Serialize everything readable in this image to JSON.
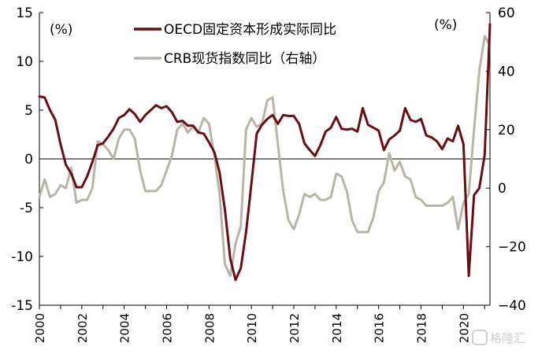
{
  "chart_data": {
    "type": "line",
    "title": "",
    "x_range": [
      2000.0,
      2021.25
    ],
    "x_ticks": [
      "2000",
      "2002",
      "2004",
      "2006",
      "2008",
      "2010",
      "2012",
      "2014",
      "2016",
      "2018",
      "2020"
    ],
    "left_axis": {
      "unit_label": "(%)",
      "ylim": [
        -15,
        15
      ],
      "ticks": [
        "15",
        "10",
        "5",
        "0",
        "-5",
        "-10",
        "-15"
      ]
    },
    "right_axis": {
      "unit_label": "(%)",
      "ylim": [
        -40,
        60
      ],
      "ticks": [
        "60",
        "40",
        "20",
        "0",
        "−20",
        "−40"
      ]
    },
    "series": [
      {
        "name": "OECD固定资本形成实际同比",
        "axis": "left",
        "color": "#6b0e14",
        "x": [
          2000.0,
          2000.25,
          2000.5,
          2000.75,
          2001.0,
          2001.25,
          2001.5,
          2001.75,
          2002.0,
          2002.25,
          2002.5,
          2002.75,
          2003.0,
          2003.25,
          2003.5,
          2003.75,
          2004.0,
          2004.25,
          2004.5,
          2004.75,
          2005.0,
          2005.25,
          2005.5,
          2005.75,
          2006.0,
          2006.25,
          2006.5,
          2006.75,
          2007.0,
          2007.25,
          2007.5,
          2007.75,
          2008.0,
          2008.25,
          2008.5,
          2008.75,
          2009.0,
          2009.25,
          2009.5,
          2009.75,
          2010.0,
          2010.25,
          2010.5,
          2010.75,
          2011.0,
          2011.25,
          2011.5,
          2011.75,
          2012.0,
          2012.25,
          2012.5,
          2012.75,
          2013.0,
          2013.25,
          2013.5,
          2013.75,
          2014.0,
          2014.25,
          2014.5,
          2014.75,
          2015.0,
          2015.25,
          2015.5,
          2015.75,
          2016.0,
          2016.25,
          2016.5,
          2016.75,
          2017.0,
          2017.25,
          2017.5,
          2017.75,
          2018.0,
          2018.25,
          2018.5,
          2018.75,
          2019.0,
          2019.25,
          2019.5,
          2019.75,
          2020.0,
          2020.25,
          2020.5,
          2020.75,
          2021.0,
          2021.25
        ],
        "values": [
          6.4,
          6.3,
          5.0,
          4.0,
          1.5,
          -0.6,
          -1.5,
          -2.9,
          -2.9,
          -1.8,
          -0.3,
          1.4,
          1.6,
          2.3,
          3.1,
          4.2,
          4.5,
          5.1,
          4.6,
          3.8,
          4.5,
          5.0,
          5.5,
          5.2,
          5.4,
          4.8,
          3.8,
          3.9,
          3.4,
          3.4,
          2.7,
          2.6,
          1.7,
          0.7,
          -1.4,
          -5.2,
          -10.2,
          -12.4,
          -11.2,
          -7.5,
          -2.5,
          2.6,
          3.5,
          4.1,
          4.5,
          3.6,
          4.5,
          4.4,
          4.4,
          3.6,
          1.6,
          0.9,
          0.3,
          1.4,
          2.8,
          3.2,
          4.3,
          3.1,
          3.0,
          3.1,
          2.8,
          5.2,
          3.5,
          3.2,
          2.9,
          0.9,
          2.0,
          2.4,
          2.9,
          5.2,
          4.0,
          3.8,
          4.1,
          2.4,
          2.2,
          1.8,
          1.0,
          2.1,
          1.8,
          3.4,
          1.5,
          -12.0,
          -3.7,
          -3.0,
          0.4,
          13.8
        ]
      },
      {
        "name": "CRB现货指数同比（右轴）",
        "axis": "right",
        "color": "#b8b5a6",
        "x": [
          2000.0,
          2000.25,
          2000.5,
          2000.75,
          2001.0,
          2001.25,
          2001.5,
          2001.75,
          2002.0,
          2002.25,
          2002.5,
          2002.75,
          2003.0,
          2003.25,
          2003.5,
          2003.75,
          2004.0,
          2004.25,
          2004.5,
          2004.75,
          2005.0,
          2005.25,
          2005.5,
          2005.75,
          2006.0,
          2006.25,
          2006.5,
          2006.75,
          2007.0,
          2007.25,
          2007.5,
          2007.75,
          2008.0,
          2008.25,
          2008.5,
          2008.75,
          2009.0,
          2009.25,
          2009.5,
          2009.75,
          2010.0,
          2010.25,
          2010.5,
          2010.75,
          2011.0,
          2011.25,
          2011.5,
          2011.75,
          2012.0,
          2012.25,
          2012.5,
          2012.75,
          2013.0,
          2013.25,
          2013.5,
          2013.75,
          2014.0,
          2014.25,
          2014.5,
          2014.75,
          2015.0,
          2015.25,
          2015.5,
          2015.75,
          2016.0,
          2016.25,
          2016.5,
          2016.75,
          2017.0,
          2017.25,
          2017.5,
          2017.75,
          2018.0,
          2018.25,
          2018.5,
          2018.75,
          2019.0,
          2019.25,
          2019.5,
          2019.75,
          2020.0,
          2020.25,
          2020.5,
          2020.75,
          2021.0,
          2021.25
        ],
        "values": [
          -3,
          3,
          -3,
          -2,
          1,
          0,
          7,
          -5,
          -4,
          -4,
          0,
          16,
          15,
          13,
          10,
          17,
          20,
          20,
          17,
          6,
          -1,
          -1,
          -1,
          1,
          6,
          11,
          20,
          22,
          19,
          21,
          19,
          24,
          22,
          11,
          -2,
          -26,
          -30,
          -19,
          -13,
          20,
          24,
          21,
          22,
          30,
          31,
          15,
          -1,
          -11,
          -14,
          -9,
          -2,
          -3,
          -2,
          -4,
          -4,
          -3,
          5,
          4,
          -1,
          -11,
          -15,
          -15,
          -15,
          -10,
          -1,
          2,
          12,
          6,
          9,
          4,
          3,
          -3,
          -4,
          -6,
          -6,
          -6,
          -6,
          -5,
          -3,
          -14,
          -5,
          -2,
          20,
          40,
          52,
          49
        ]
      }
    ]
  },
  "watermark": {
    "label": "格隆汇"
  }
}
